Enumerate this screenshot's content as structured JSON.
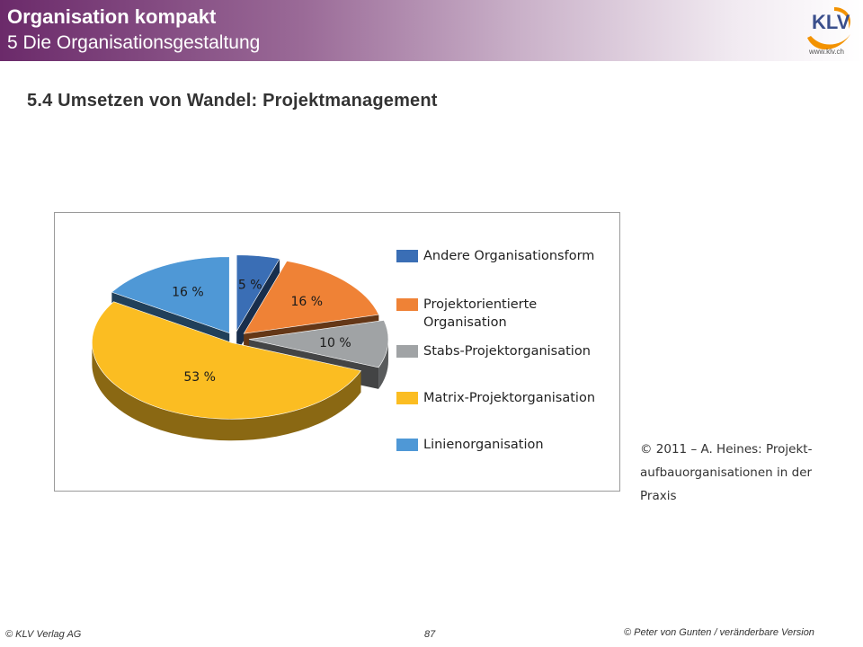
{
  "header": {
    "title": "Organisation kompakt",
    "subtitle": "5 Die Organisationsgestaltung",
    "logo_text": "KLV",
    "logo_url": "www.klv.ch"
  },
  "section_title": "5.4 Umsetzen von Wandel: Projektmanagement",
  "chart_data": {
    "type": "pie",
    "style": "3d-exploded",
    "series": [
      {
        "name": "Andere Organisationsform",
        "value": 5,
        "label": "5 %",
        "color": "#3a6eb5"
      },
      {
        "name": "Projektorientierte Organisation",
        "value": 16,
        "label": "16 %",
        "color": "#ef8236"
      },
      {
        "name": "Stabs-Projektorganisation",
        "value": 10,
        "label": "10 %",
        "color": "#a0a3a5"
      },
      {
        "name": "Matrix-Projektorganisation",
        "value": 53,
        "label": "53 %",
        "color": "#fbbd22"
      },
      {
        "name": "Linienorganisation",
        "value": 16,
        "label": "16 %",
        "color": "#4f98d6"
      }
    ],
    "legend_position": "right"
  },
  "legend": [
    {
      "line1": "Andere Organisationsform",
      "line2": ""
    },
    {
      "line1": "Projektorientierte",
      "line2": "Organisation"
    },
    {
      "line1": "Stabs-Projektorganisation",
      "line2": ""
    },
    {
      "line1": "Matrix-Projektorganisation",
      "line2": ""
    },
    {
      "line1": "Linienorganisation",
      "line2": ""
    }
  ],
  "source": {
    "line1": "© 2011 – A. Heines: Projekt-",
    "line2": "aufbauorganisationen in der",
    "line3": "Praxis"
  },
  "footer": {
    "left": "© KLV Verlag AG",
    "page": "87",
    "right": "© Peter von Gunten / veränderbare Version"
  },
  "colors": {
    "header_start": "#6b2a6a",
    "logo_orange": "#f39200",
    "logo_blue": "#3b4f8c"
  }
}
